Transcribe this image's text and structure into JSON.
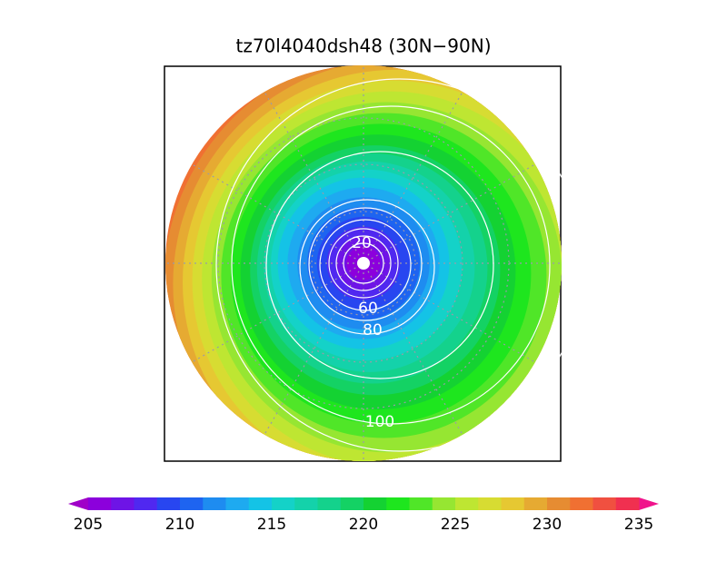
{
  "title": "tz70l4040dsh48 (30N−90N)",
  "contour_labels": [
    20,
    60,
    80,
    100
  ],
  "colorbar": {
    "min": 205,
    "max": 235,
    "ticks": [
      205,
      210,
      215,
      220,
      225,
      230,
      235
    ],
    "colors": [
      "#a000c8",
      "#8c00dc",
      "#6e14e6",
      "#5028f0",
      "#2846f0",
      "#1e64f0",
      "#1e8cf0",
      "#1eaaf0",
      "#14c3e6",
      "#14d2c8",
      "#14d2aa",
      "#14d28c",
      "#14d264",
      "#14d232",
      "#1ee61e",
      "#50e628",
      "#96e632",
      "#bee632",
      "#d7dc32",
      "#e6c832",
      "#e6aa32",
      "#e68c32",
      "#f07032",
      "#f05040",
      "#f03050",
      "#f0148c"
    ]
  }
}
